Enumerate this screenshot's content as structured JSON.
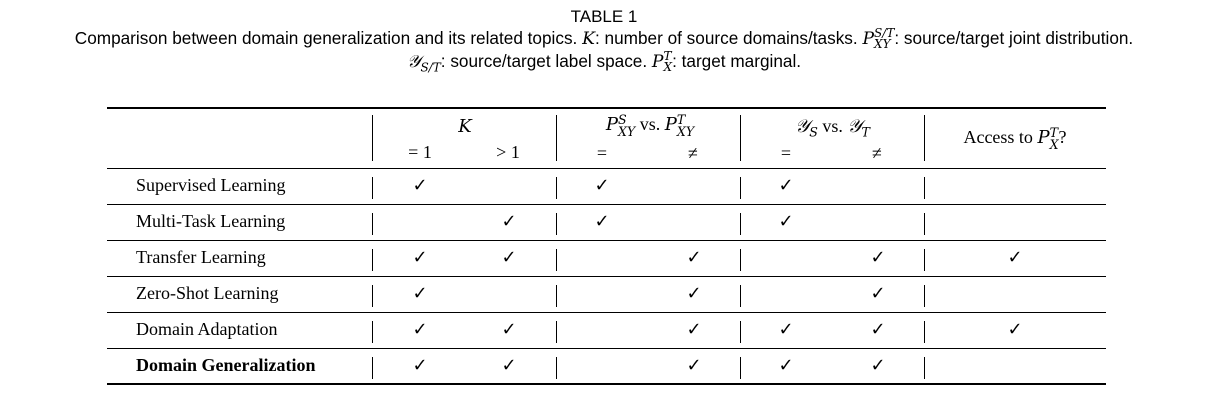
{
  "caption": {
    "title": "TABLE 1",
    "line1_a": "Comparison between domain generalization and its related topics.",
    "line1_K": "K",
    "line1_b": ": number of source domains/tasks.",
    "line1_P": "P",
    "line1_P_sup": "S/T",
    "line1_P_sub": "XY",
    "line1_c": ": source/target joint distribution.",
    "line2_Y": "𝒴",
    "line2_Y_sub": "S/T",
    "line2_a": ": source/target label space.",
    "line2_P": "P",
    "line2_P_sup": "T",
    "line2_P_sub": "X",
    "line2_b": ": target marginal."
  },
  "table": {
    "header": {
      "k_label": "K",
      "k_eq1": "= 1",
      "k_gt1": "> 1",
      "p_label_a": "P",
      "p_label_a_sup": "S",
      "p_label_a_sub": "XY",
      "p_label_vs": "vs.",
      "p_label_b": "P",
      "p_label_b_sup": "T",
      "p_label_b_sub": "XY",
      "p_eq": "=",
      "p_neq": "≠",
      "y_label_a": "𝒴",
      "y_label_a_sub": "S",
      "y_label_vs": "vs.",
      "y_label_b": "𝒴",
      "y_label_b_sub": "T",
      "y_eq": "=",
      "y_neq": "≠",
      "access_a": "Access to",
      "access_P": "P",
      "access_P_sup": "T",
      "access_P_sub": "X",
      "access_q": "?"
    },
    "check_symbol": "✓",
    "rows": [
      {
        "label": "Supervised Learning",
        "k_eq1": true,
        "k_gt1": false,
        "p_eq": true,
        "p_neq": false,
        "y_eq": true,
        "y_neq": false,
        "access": false,
        "bold": false
      },
      {
        "label": "Multi-Task Learning",
        "k_eq1": false,
        "k_gt1": true,
        "p_eq": true,
        "p_neq": false,
        "y_eq": true,
        "y_neq": false,
        "access": false,
        "bold": false
      },
      {
        "label": "Transfer Learning",
        "k_eq1": true,
        "k_gt1": true,
        "p_eq": false,
        "p_neq": true,
        "y_eq": false,
        "y_neq": true,
        "access": true,
        "bold": false
      },
      {
        "label": "Zero-Shot Learning",
        "k_eq1": true,
        "k_gt1": false,
        "p_eq": false,
        "p_neq": true,
        "y_eq": false,
        "y_neq": true,
        "access": false,
        "bold": false
      },
      {
        "label": "Domain Adaptation",
        "k_eq1": true,
        "k_gt1": true,
        "p_eq": false,
        "p_neq": true,
        "y_eq": true,
        "y_neq": true,
        "access": true,
        "bold": false
      },
      {
        "label": "Domain Generalization",
        "k_eq1": true,
        "k_gt1": true,
        "p_eq": false,
        "p_neq": true,
        "y_eq": true,
        "y_neq": true,
        "access": false,
        "bold": true
      }
    ]
  }
}
